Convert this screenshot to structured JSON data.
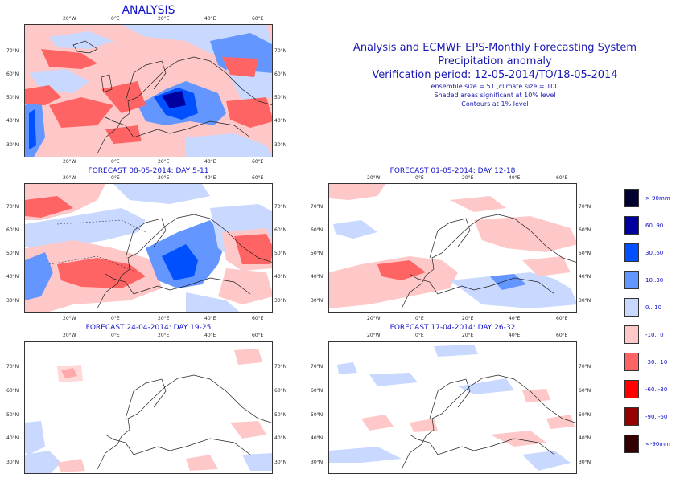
{
  "header": {
    "line1": "Analysis and ECMWF EPS-Monthly Forecasting System",
    "line2": "Precipitation anomaly",
    "line3": "Verification period: 12-05-2014/TO/18-05-2014",
    "line4": "ensemble size = 51  ,climate size = 100",
    "line5": "Shaded areas significant at 10% level",
    "line6": "Contours at 1% level"
  },
  "maps": {
    "analysis": {
      "title": "ANALYSIS"
    },
    "day5_11": {
      "title": "FORECAST 08-05-2014: DAY 5-11"
    },
    "day12_18": {
      "title": "FORECAST 01-05-2014: DAY 12-18"
    },
    "day19_25": {
      "title": "FORECAST 24-04-2014: DAY 19-25"
    },
    "day26_32": {
      "title": "FORECAST 17-04-2014: DAY 26-32"
    }
  },
  "ticks": {
    "lon": [
      "20°W",
      "0°E",
      "20°E",
      "40°E",
      "60°E"
    ],
    "lat": [
      "70°N",
      "60°N",
      "50°N",
      "40°N",
      "30°N"
    ]
  },
  "legend": [
    {
      "label": "> 90mm",
      "color": "#000033"
    },
    {
      "label": "60..90",
      "color": "#0000a0"
    },
    {
      "label": "30..60",
      "color": "#0050ff"
    },
    {
      "label": "10..30",
      "color": "#6496ff"
    },
    {
      "label": "0.. 10",
      "color": "#c8d8ff"
    },
    {
      "label": "-10.. 0",
      "color": "#ffc8c8"
    },
    {
      "label": "-30..-10",
      "color": "#ff6464"
    },
    {
      "label": "-60..-30",
      "color": "#ff0000"
    },
    {
      "label": "-90..-60",
      "color": "#960000"
    },
    {
      "label": "<-90mm",
      "color": "#320000"
    }
  ]
}
